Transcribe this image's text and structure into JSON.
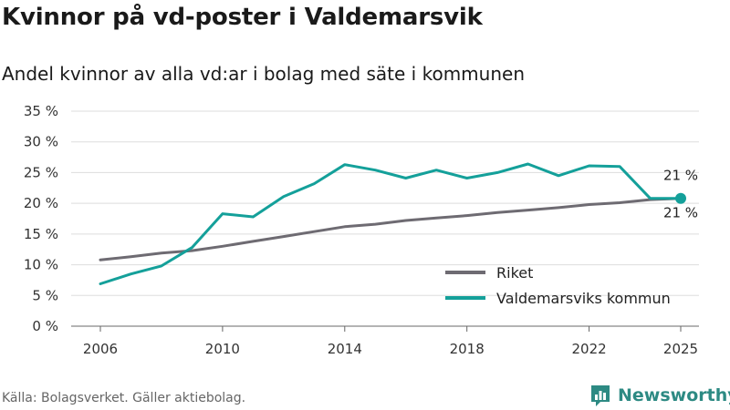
{
  "title": "Kvinnor på vd-poster i Valdemarsvik",
  "subtitle": "Andel kvinnor av alla vd:ar i bolag med säte i kommunen",
  "source": "Källa: Bolagsverket. Gäller aktiebolag.",
  "brand": "Newsworthy",
  "colors": {
    "riket": "#6e6b72",
    "valdemarsvik": "#14a09a",
    "grid": "#dddddd",
    "brand": "#2d8a83"
  },
  "chart_data": {
    "type": "line",
    "title": "Kvinnor på vd-poster i Valdemarsvik",
    "ylabel": "",
    "xlabel": "",
    "ylim": [
      0,
      35
    ],
    "yticks": [
      0,
      5,
      10,
      15,
      20,
      25,
      30,
      35
    ],
    "ytick_labels": [
      "0 %",
      "5 %",
      "10 %",
      "15 %",
      "20 %",
      "25 %",
      "30 %",
      "35 %"
    ],
    "xlim": [
      2006,
      2025
    ],
    "xticks": [
      2006,
      2010,
      2014,
      2018,
      2022,
      2025
    ],
    "xtick_labels": [
      "2006",
      "2010",
      "2014",
      "2018",
      "2022",
      "2025"
    ],
    "x": [
      2006,
      2007,
      2008,
      2009,
      2010,
      2011,
      2012,
      2013,
      2014,
      2015,
      2016,
      2017,
      2018,
      2019,
      2020,
      2021,
      2022,
      2023,
      2024,
      2025
    ],
    "series": [
      {
        "name": "Riket",
        "values": [
          10.8,
          11.3,
          11.9,
          12.3,
          13.0,
          13.8,
          14.6,
          15.4,
          16.2,
          16.6,
          17.2,
          17.6,
          18.0,
          18.5,
          18.9,
          19.3,
          19.8,
          20.1,
          20.6,
          20.8
        ]
      },
      {
        "name": "Valdemarsviks kommun",
        "values": [
          6.9,
          8.5,
          9.8,
          12.8,
          18.3,
          17.8,
          21.1,
          23.2,
          26.3,
          25.4,
          24.1,
          25.4,
          24.1,
          25.0,
          26.4,
          24.5,
          26.1,
          26.0,
          20.8,
          20.8
        ]
      }
    ],
    "annotations": [
      {
        "series": "Riket",
        "x": 2025,
        "text": "21 %",
        "position": "above"
      },
      {
        "series": "Valdemarsviks kommun",
        "x": 2025,
        "text": "21 %",
        "position": "below"
      }
    ],
    "legend": [
      "Riket",
      "Valdemarsviks kommun"
    ],
    "legend_position": "bottom-right",
    "grid": true
  }
}
